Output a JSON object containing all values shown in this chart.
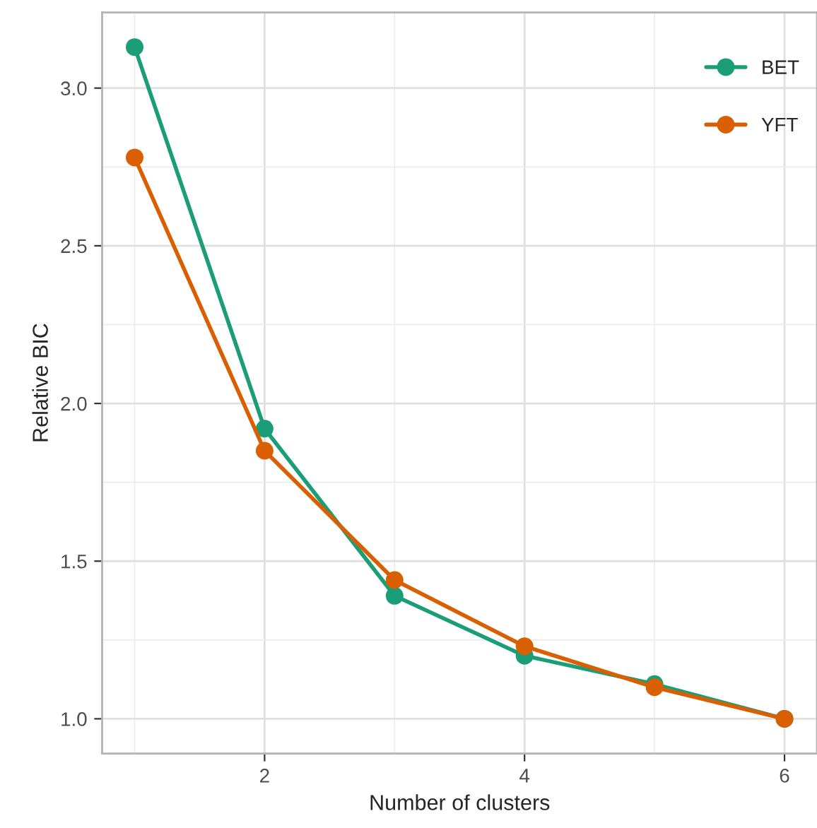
{
  "chart_data": {
    "type": "line",
    "xlabel": "Number of clusters",
    "ylabel": "Relative BIC",
    "x": [
      1,
      2,
      3,
      4,
      5,
      6
    ],
    "series": [
      {
        "name": "BET",
        "color": "#1b9e77",
        "values": [
          3.13,
          1.92,
          1.39,
          1.2,
          1.11,
          1.0
        ]
      },
      {
        "name": "YFT",
        "color": "#d95f02",
        "values": [
          2.78,
          1.85,
          1.44,
          1.23,
          1.1,
          1.0
        ]
      }
    ],
    "xlim": [
      0.75,
      6.25
    ],
    "xticks": [
      2,
      4,
      6
    ],
    "ylim": [
      0.89,
      3.24
    ],
    "yticks": [
      {
        "value": 1,
        "label": "1.0"
      },
      1.5,
      {
        "value": 2,
        "label": "2.0"
      },
      2.5,
      {
        "value": 3,
        "label": "3.0"
      }
    ],
    "grid": true,
    "legend": "top right",
    "marker": "circle",
    "line_style": "solid"
  }
}
